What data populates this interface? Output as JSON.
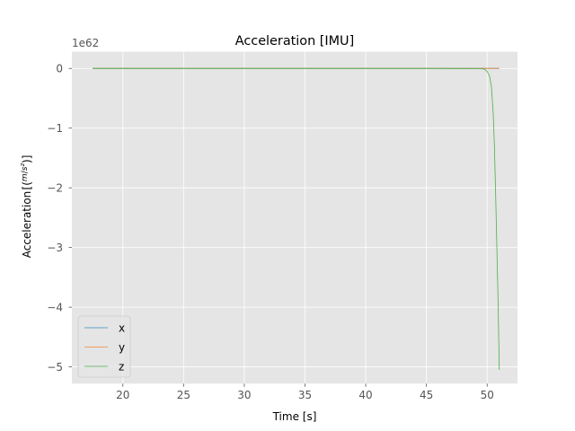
{
  "chart_data": {
    "type": "line",
    "title": "Acceleration [IMU]",
    "xlabel": "Time [s]",
    "ylabel": "Acceleration",
    "ylabel_unit": "m/s²",
    "y_offset_label": "1e62",
    "y_scale": 1e+62,
    "xlim": [
      15.8,
      52.5
    ],
    "ylim": [
      -5.28,
      0.28
    ],
    "x_ticks": [
      20,
      25,
      30,
      35,
      40,
      45,
      50
    ],
    "x_tick_labels": [
      "20",
      "25",
      "30",
      "35",
      "40",
      "45",
      "50"
    ],
    "y_ticks": [
      0,
      -1,
      -2,
      -3,
      -4,
      -5
    ],
    "y_tick_labels": [
      "0",
      "−1",
      "−2",
      "−3",
      "−4",
      "−5"
    ],
    "grid": true,
    "legend_position": "lower-left",
    "series": [
      {
        "name": "x",
        "color": "#348abd",
        "x": [
          17.5,
          20,
          25,
          30,
          35,
          40,
          45,
          50,
          51
        ],
        "y": [
          0,
          0,
          0,
          0,
          0,
          0,
          0,
          0,
          0
        ]
      },
      {
        "name": "y",
        "color": "#e8883f",
        "x": [
          17.5,
          20,
          25,
          30,
          35,
          40,
          45,
          50,
          51
        ],
        "y": [
          0,
          0,
          0,
          0,
          0,
          0,
          0,
          0,
          0
        ]
      },
      {
        "name": "z",
        "color": "#4daf4a",
        "x": [
          17.5,
          20,
          25,
          30,
          35,
          40,
          45,
          49.5,
          49.8,
          50.0,
          50.2,
          50.35,
          50.5,
          50.6,
          50.7,
          50.8,
          50.9,
          51.0
        ],
        "y": [
          0,
          0,
          0,
          0,
          0,
          0,
          0,
          -0.003,
          -0.015,
          -0.05,
          -0.13,
          -0.3,
          -0.75,
          -1.3,
          -2.1,
          -3.0,
          -3.9,
          -5.05
        ]
      }
    ]
  }
}
